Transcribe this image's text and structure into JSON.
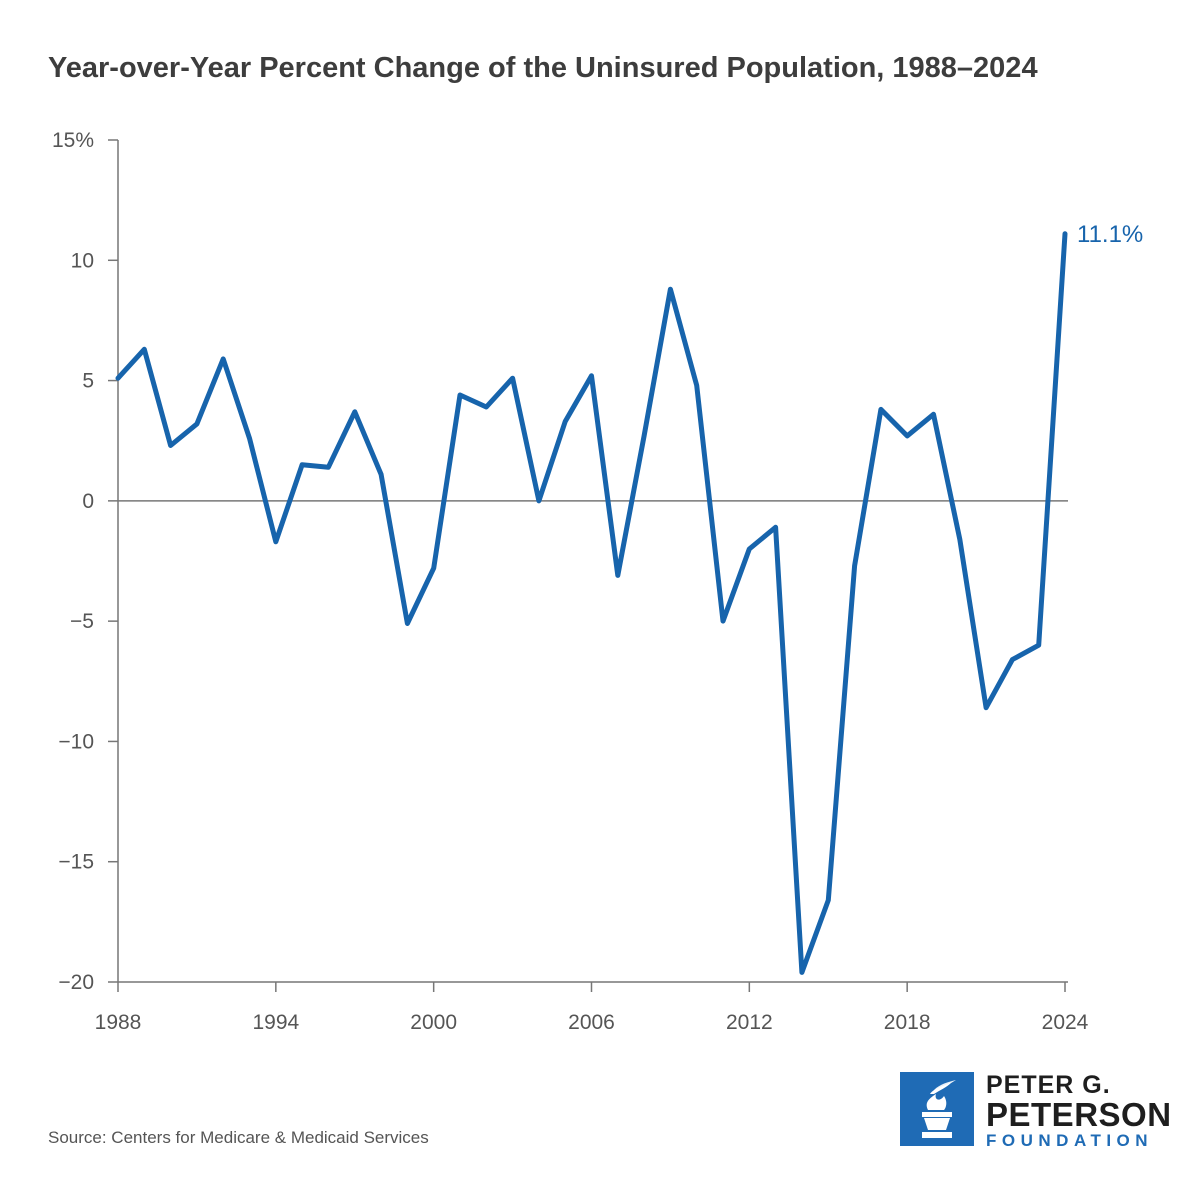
{
  "title": "Year-over-Year Percent Change of the Uninsured Population, 1988–2024",
  "source": "Source: Centers for Medicare & Medicaid Services",
  "logo": {
    "line1": "PETER G.",
    "line2": "PETERSON",
    "line3": "FOUNDATION"
  },
  "colors": {
    "line": "#1764ac",
    "axis": "#777777",
    "title": "#3d3d3d",
    "logo_blue": "#1f6bb5"
  },
  "chart_data": {
    "type": "line",
    "title": "Year-over-Year Percent Change of the Uninsured Population, 1988–2024",
    "xlabel": "",
    "ylabel": "",
    "xlim": [
      1988,
      2024
    ],
    "ylim": [
      -20,
      15
    ],
    "y_ticks": [
      15,
      10,
      5,
      0,
      -5,
      -10,
      -15,
      -20
    ],
    "y_tick_labels": [
      "15%",
      "10",
      "5",
      "0",
      "−5",
      "−10",
      "−15",
      "−20"
    ],
    "x_ticks": [
      1988,
      1994,
      2000,
      2006,
      2012,
      2018,
      2024
    ],
    "x_tick_labels": [
      "1988",
      "1994",
      "2000",
      "2006",
      "2012",
      "2018",
      "2024"
    ],
    "series": [
      {
        "name": "Year-over-year percent change",
        "x": [
          1988,
          1989,
          1990,
          1991,
          1992,
          1993,
          1994,
          1995,
          1996,
          1997,
          1998,
          1999,
          2000,
          2001,
          2002,
          2003,
          2004,
          2005,
          2006,
          2007,
          2008,
          2009,
          2010,
          2011,
          2012,
          2013,
          2014,
          2015,
          2016,
          2017,
          2018,
          2019,
          2020,
          2021,
          2022,
          2023,
          2024
        ],
        "values": [
          5.1,
          6.3,
          2.3,
          3.2,
          5.9,
          2.6,
          -1.7,
          1.5,
          1.4,
          3.7,
          1.1,
          -5.1,
          -2.8,
          4.4,
          3.9,
          5.1,
          0.0,
          3.3,
          5.2,
          -3.1,
          2.7,
          8.8,
          4.8,
          -5.0,
          -2.0,
          -1.1,
          -19.6,
          -16.6,
          -2.7,
          3.8,
          2.7,
          3.6,
          -1.6,
          -8.6,
          -6.6,
          -6.0,
          11.1
        ]
      }
    ],
    "annotations": [
      {
        "x": 2024,
        "y": 11.1,
        "text": "11.1%"
      }
    ],
    "grid": false
  }
}
